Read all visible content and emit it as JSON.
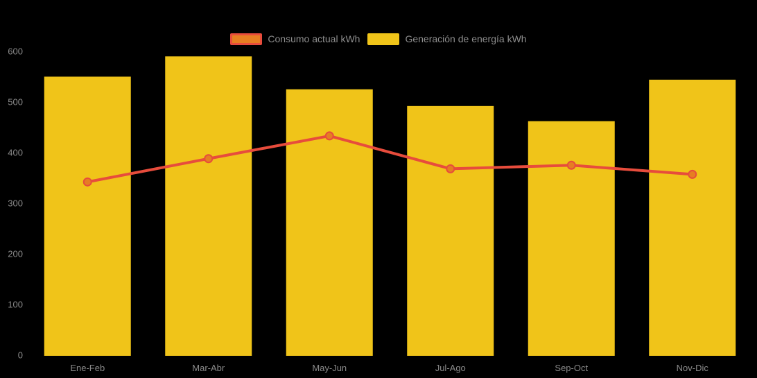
{
  "chart_data": {
    "type": "bar",
    "subtype": "bar-with-line-overlay",
    "categories": [
      "Ene-Feb",
      "Mar-Abr",
      "May-Jun",
      "Jul-Ago",
      "Sep-Oct",
      "Nov-Dic"
    ],
    "series": [
      {
        "name": "Consumo actual kWh",
        "type": "line",
        "values": [
          342,
          388,
          433,
          368,
          375,
          357
        ],
        "line_color": "#E74C3C",
        "marker_fill": "#E67E22",
        "marker_stroke": "#E74C3C"
      },
      {
        "name": "Generación de energía kWh",
        "type": "bar",
        "values": [
          550,
          590,
          525,
          492,
          462,
          544
        ],
        "color": "#F0C419"
      }
    ],
    "title": "",
    "xlabel": "",
    "ylabel": "",
    "ylim": [
      0,
      600
    ],
    "yticks": [
      "0",
      "100",
      "200",
      "300",
      "400",
      "500",
      "600"
    ],
    "grid": false,
    "legend_position": "top-center",
    "background_color": "#000000",
    "axis_label_color": "#8A8A8A",
    "legend_text_color": "#8E8E8E"
  }
}
